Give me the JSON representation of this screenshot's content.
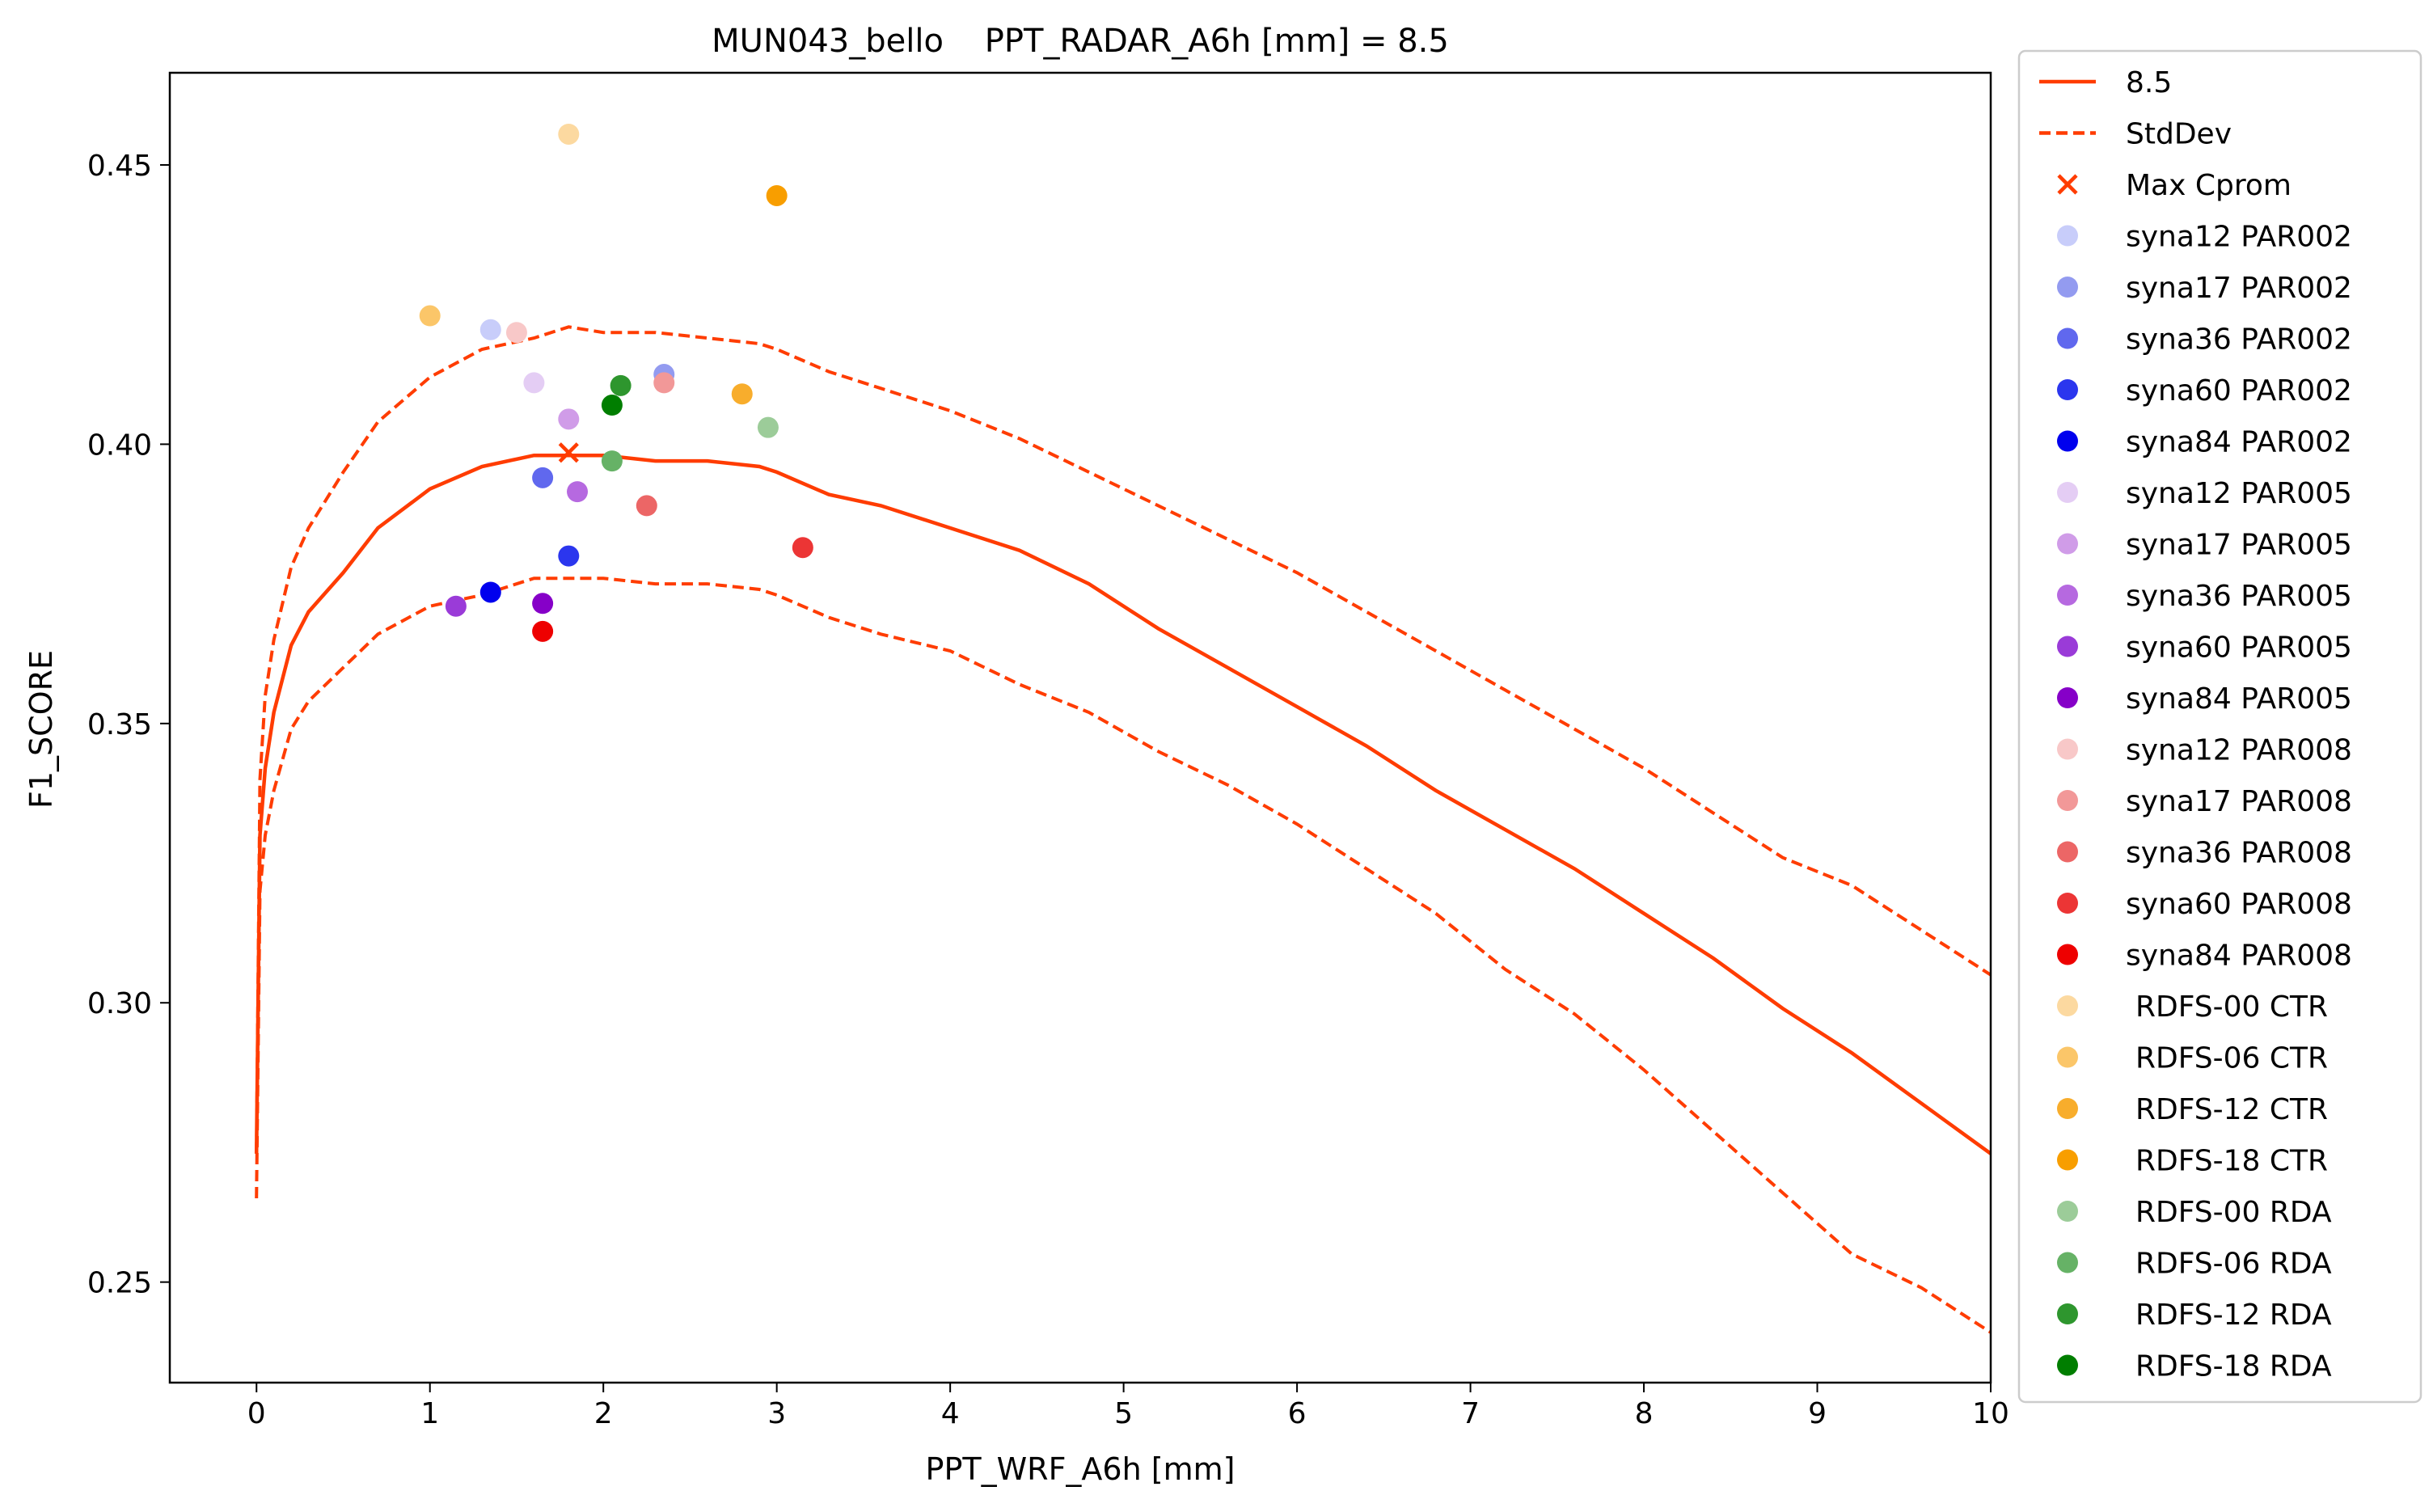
{
  "chart_data": {
    "type": "line",
    "title": "MUN043_bello    PPT_RADAR_A6h [mm] = 8.5",
    "xlabel": "PPT_WRF_A6h [mm]",
    "ylabel": "F1_SCORE",
    "xlim": [
      -0.5,
      10
    ],
    "ylim": [
      0.232,
      0.4665
    ],
    "xticks": [
      0,
      1,
      2,
      3,
      4,
      5,
      6,
      7,
      8,
      9,
      10
    ],
    "xtick_labels": [
      "0",
      "1",
      "2",
      "3",
      "4",
      "5",
      "6",
      "7",
      "8",
      "9",
      "10"
    ],
    "yticks": [
      0.25,
      0.3,
      0.35,
      0.4,
      0.45
    ],
    "ytick_labels": [
      "0.25",
      "0.30",
      "0.35",
      "0.40",
      "0.45"
    ],
    "grid": false,
    "legend_position": "outside-right",
    "line_color": "#ff3c00",
    "mean_line": {
      "name": "8.5",
      "x": [
        0,
        0.02,
        0.05,
        0.1,
        0.2,
        0.3,
        0.5,
        0.7,
        1.0,
        1.3,
        1.6,
        1.8,
        2.0,
        2.3,
        2.6,
        2.9,
        3.0,
        3.3,
        3.6,
        4.0,
        4.4,
        4.8,
        5.2,
        5.6,
        6.0,
        6.4,
        6.8,
        7.2,
        7.6,
        8.0,
        8.4,
        8.8,
        9.2,
        9.6,
        10.0
      ],
      "y": [
        0.273,
        0.33,
        0.342,
        0.352,
        0.364,
        0.37,
        0.377,
        0.385,
        0.392,
        0.396,
        0.398,
        0.398,
        0.398,
        0.397,
        0.397,
        0.396,
        0.395,
        0.391,
        0.389,
        0.385,
        0.381,
        0.375,
        0.367,
        0.36,
        0.353,
        0.346,
        0.338,
        0.331,
        0.324,
        0.316,
        0.308,
        0.299,
        0.291,
        0.282,
        0.273
      ]
    },
    "stddev_band": {
      "name": "StdDev",
      "x": [
        0,
        0.02,
        0.05,
        0.1,
        0.2,
        0.3,
        0.5,
        0.7,
        1.0,
        1.3,
        1.6,
        1.8,
        2.0,
        2.3,
        2.6,
        2.9,
        3.0,
        3.3,
        3.6,
        4.0,
        4.4,
        4.8,
        5.2,
        5.6,
        6.0,
        6.4,
        6.8,
        7.2,
        7.6,
        8.0,
        8.4,
        8.8,
        9.2,
        9.6,
        10.0
      ],
      "upper": [
        0.273,
        0.34,
        0.355,
        0.365,
        0.378,
        0.385,
        0.395,
        0.404,
        0.412,
        0.417,
        0.419,
        0.421,
        0.42,
        0.42,
        0.419,
        0.418,
        0.417,
        0.413,
        0.41,
        0.406,
        0.401,
        0.395,
        0.389,
        0.383,
        0.377,
        0.37,
        0.363,
        0.356,
        0.349,
        0.342,
        0.334,
        0.326,
        0.321,
        0.313,
        0.305
      ],
      "lower": [
        0.265,
        0.32,
        0.33,
        0.338,
        0.349,
        0.354,
        0.36,
        0.366,
        0.371,
        0.373,
        0.376,
        0.376,
        0.376,
        0.375,
        0.375,
        0.374,
        0.373,
        0.369,
        0.366,
        0.363,
        0.357,
        0.352,
        0.345,
        0.339,
        0.332,
        0.324,
        0.316,
        0.306,
        0.298,
        0.288,
        0.277,
        0.266,
        0.255,
        0.249,
        0.241
      ]
    },
    "max_point": {
      "name": "Max Cprom",
      "x": 1.8,
      "y": 0.3985
    },
    "series": [
      {
        "name": "syna12 PAR002",
        "color": "#c8cdfa",
        "x": 1.35,
        "y": 0.4205
      },
      {
        "name": "syna17 PAR002",
        "color": "#939bf0",
        "x": 2.35,
        "y": 0.4125
      },
      {
        "name": "syna36 PAR002",
        "color": "#6068ee",
        "x": 1.65,
        "y": 0.394
      },
      {
        "name": "syna60 PAR002",
        "color": "#2b36ee",
        "x": 1.8,
        "y": 0.38
      },
      {
        "name": "syna84 PAR002",
        "color": "#0000ee",
        "x": 1.35,
        "y": 0.3735
      },
      {
        "name": "syna12 PAR005",
        "color": "#e4cdf4",
        "x": 1.6,
        "y": 0.411
      },
      {
        "name": "syna17 PAR005",
        "color": "#d09ce8",
        "x": 1.8,
        "y": 0.4045
      },
      {
        "name": "syna36 PAR005",
        "color": "#b669e0",
        "x": 1.85,
        "y": 0.3915
      },
      {
        "name": "syna60 PAR005",
        "color": "#9a3bd8",
        "x": 1.15,
        "y": 0.371
      },
      {
        "name": "syna84 PAR005",
        "color": "#8600c8",
        "x": 1.65,
        "y": 0.3715
      },
      {
        "name": "syna12 PAR008",
        "color": "#f8c8c8",
        "x": 1.5,
        "y": 0.42
      },
      {
        "name": "syna17 PAR008",
        "color": "#f29898",
        "x": 2.35,
        "y": 0.411
      },
      {
        "name": "syna36 PAR008",
        "color": "#ec6666",
        "x": 2.25,
        "y": 0.389
      },
      {
        "name": "syna60 PAR008",
        "color": "#ec3535",
        "x": 3.15,
        "y": 0.3815
      },
      {
        "name": "syna84 PAR008",
        "color": "#ee0000",
        "x": 1.65,
        "y": 0.3665
      },
      {
        "name": "RDFS-00 CTR",
        "color": "#fcd9a0",
        "x": 1.8,
        "y": 0.4555
      },
      {
        "name": "RDFS-06 CTR",
        "color": "#fbc669",
        "x": 1.0,
        "y": 0.423
      },
      {
        "name": "RDFS-12 CTR",
        "color": "#f8ad2c",
        "x": 2.8,
        "y": 0.409
      },
      {
        "name": "RDFS-18 CTR",
        "color": "#f89e00",
        "x": 3.0,
        "y": 0.4445
      },
      {
        "name": "RDFS-00 RDA",
        "color": "#9ccc99",
        "x": 2.95,
        "y": 0.403
      },
      {
        "name": "RDFS-06 RDA",
        "color": "#66b266",
        "x": 2.05,
        "y": 0.397
      },
      {
        "name": "RDFS-12 RDA",
        "color": "#2e962e",
        "x": 2.1,
        "y": 0.4105
      },
      {
        "name": "RDFS-18 RDA",
        "color": "#007e00",
        "x": 2.05,
        "y": 0.407
      }
    ]
  }
}
